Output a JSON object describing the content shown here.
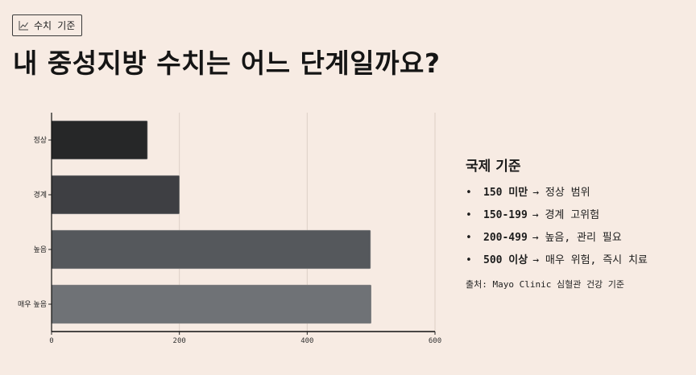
{
  "badge": {
    "icon": "line-chart-icon",
    "label": "수치 기준"
  },
  "title": "내 중성지방 수치는 어느 단계일까요?",
  "chart_data": {
    "type": "bar",
    "orientation": "horizontal",
    "categories": [
      "정상",
      "경계",
      "높음",
      "매우 높음"
    ],
    "values": [
      150,
      200,
      499,
      500
    ],
    "colors": [
      "#262728",
      "#3e3f43",
      "#55585c",
      "#6f7276"
    ],
    "xlim": [
      0,
      600
    ],
    "xticks": [
      0,
      200,
      400,
      600
    ],
    "grid": "vertical",
    "title": "",
    "xlabel": "",
    "ylabel": ""
  },
  "info": {
    "heading": "국제 기준",
    "items": [
      {
        "value": "150 미만",
        "desc": "→ 정상 범위"
      },
      {
        "value": "150-199",
        "desc": "→ 경계 고위험"
      },
      {
        "value": "200-499",
        "desc": "→ 높음, 관리 필요"
      },
      {
        "value": "500 이상",
        "desc": "→ 매우 위험, 즉시 치료"
      }
    ],
    "bullet": "•",
    "source": "출처: Mayo Clinic 심혈관 건강 기준"
  }
}
